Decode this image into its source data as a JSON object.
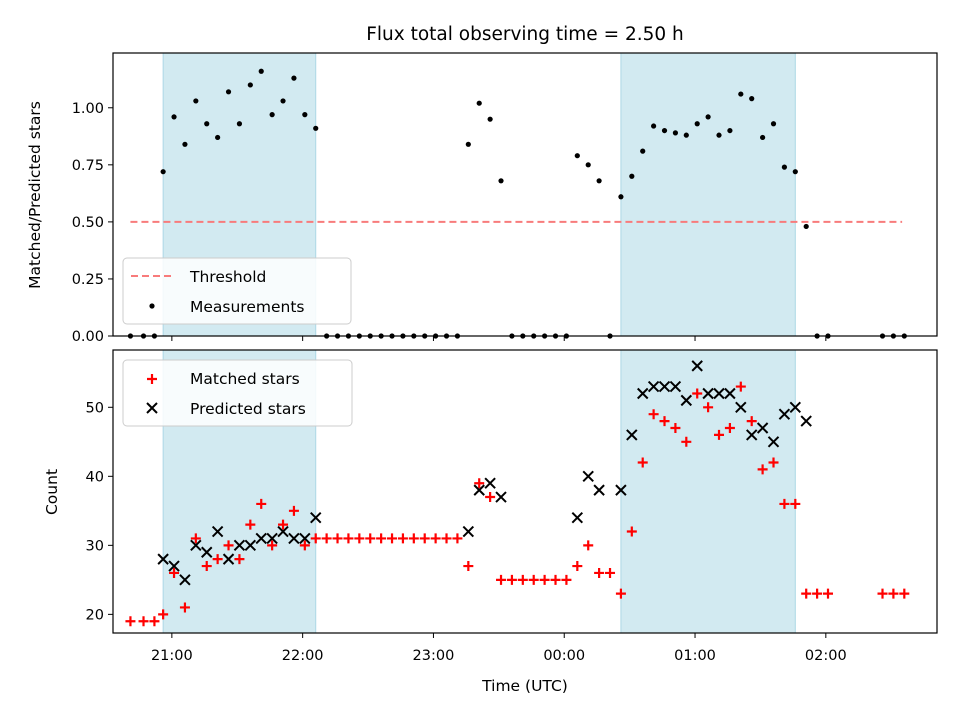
{
  "chart_data": [
    {
      "type": "scatter",
      "title": "Flux total observing time = 2.50 h",
      "xlabel": "",
      "ylabel": "Matched/Predicted stars",
      "ylim": [
        0,
        1.24
      ],
      "xlim": [
        "20:33",
        "02:51"
      ],
      "x_ticks": [
        "21:00",
        "22:00",
        "23:00",
        "00:00",
        "01:00",
        "02:00"
      ],
      "y_ticks": [
        "0.00",
        "0.25",
        "0.50",
        "0.75",
        "1.00"
      ],
      "y_tick_values": [
        0,
        0.25,
        0.5,
        0.75,
        1.0
      ],
      "grid": false,
      "legend": "lower-left",
      "shaded_intervals": [
        [
          "20:56",
          "22:06"
        ],
        [
          "00:26",
          "01:46"
        ]
      ],
      "series": [
        {
          "name": "Threshold",
          "kind": "dashed-line",
          "color": "#f87b7b",
          "points": [
            {
              "x": "20:41",
              "y": 0.5
            },
            {
              "x": "02:35",
              "y": 0.5
            }
          ]
        },
        {
          "name": "Measurements",
          "kind": "dots",
          "color": "#000000",
          "points": [
            {
              "x": "20:41",
              "y": 0
            },
            {
              "x": "20:47",
              "y": 0
            },
            {
              "x": "20:52",
              "y": 0
            },
            {
              "x": "20:56",
              "y": 0.72
            },
            {
              "x": "21:01",
              "y": 0.96
            },
            {
              "x": "21:06",
              "y": 0.84
            },
            {
              "x": "21:11",
              "y": 1.03
            },
            {
              "x": "21:16",
              "y": 0.93
            },
            {
              "x": "21:21",
              "y": 0.87
            },
            {
              "x": "21:26",
              "y": 1.07
            },
            {
              "x": "21:31",
              "y": 0.93
            },
            {
              "x": "21:36",
              "y": 1.1
            },
            {
              "x": "21:41",
              "y": 1.16
            },
            {
              "x": "21:46",
              "y": 0.97
            },
            {
              "x": "21:51",
              "y": 1.03
            },
            {
              "x": "21:56",
              "y": 1.13
            },
            {
              "x": "22:01",
              "y": 0.97
            },
            {
              "x": "22:06",
              "y": 0.91
            },
            {
              "x": "22:11",
              "y": 0
            },
            {
              "x": "22:16",
              "y": 0
            },
            {
              "x": "22:21",
              "y": 0
            },
            {
              "x": "22:26",
              "y": 0
            },
            {
              "x": "22:31",
              "y": 0
            },
            {
              "x": "22:36",
              "y": 0
            },
            {
              "x": "22:41",
              "y": 0
            },
            {
              "x": "22:46",
              "y": 0
            },
            {
              "x": "22:51",
              "y": 0
            },
            {
              "x": "22:56",
              "y": 0
            },
            {
              "x": "23:01",
              "y": 0
            },
            {
              "x": "23:06",
              "y": 0
            },
            {
              "x": "23:11",
              "y": 0
            },
            {
              "x": "23:16",
              "y": 0.84
            },
            {
              "x": "23:21",
              "y": 1.02
            },
            {
              "x": "23:26",
              "y": 0.95
            },
            {
              "x": "23:31",
              "y": 0.68
            },
            {
              "x": "23:36",
              "y": 0
            },
            {
              "x": "23:41",
              "y": 0
            },
            {
              "x": "23:46",
              "y": 0
            },
            {
              "x": "23:51",
              "y": 0
            },
            {
              "x": "23:56",
              "y": 0
            },
            {
              "x": "00:01",
              "y": 0
            },
            {
              "x": "00:06",
              "y": 0.79
            },
            {
              "x": "00:11",
              "y": 0.75
            },
            {
              "x": "00:16",
              "y": 0.68
            },
            {
              "x": "00:21",
              "y": 0
            },
            {
              "x": "00:26",
              "y": 0.61
            },
            {
              "x": "00:31",
              "y": 0.7
            },
            {
              "x": "00:36",
              "y": 0.81
            },
            {
              "x": "00:41",
              "y": 0.92
            },
            {
              "x": "00:46",
              "y": 0.9
            },
            {
              "x": "00:51",
              "y": 0.89
            },
            {
              "x": "00:56",
              "y": 0.88
            },
            {
              "x": "01:01",
              "y": 0.93
            },
            {
              "x": "01:06",
              "y": 0.96
            },
            {
              "x": "01:11",
              "y": 0.88
            },
            {
              "x": "01:16",
              "y": 0.9
            },
            {
              "x": "01:21",
              "y": 1.06
            },
            {
              "x": "01:26",
              "y": 1.04
            },
            {
              "x": "01:31",
              "y": 0.87
            },
            {
              "x": "01:36",
              "y": 0.93
            },
            {
              "x": "01:41",
              "y": 0.74
            },
            {
              "x": "01:46",
              "y": 0.72
            },
            {
              "x": "01:51",
              "y": 0.48
            },
            {
              "x": "01:56",
              "y": 0
            },
            {
              "x": "02:01",
              "y": 0
            },
            {
              "x": "02:26",
              "y": 0
            },
            {
              "x": "02:31",
              "y": 0
            },
            {
              "x": "02:36",
              "y": 0
            }
          ]
        }
      ]
    },
    {
      "type": "scatter",
      "title": "",
      "xlabel": "Time (UTC)",
      "ylabel": "Count",
      "ylim": [
        17.3,
        58.3
      ],
      "xlim": [
        "20:33",
        "02:51"
      ],
      "x_ticks": [
        "21:00",
        "22:00",
        "23:00",
        "00:00",
        "01:00",
        "02:00"
      ],
      "y_ticks": [
        "20",
        "30",
        "40",
        "50"
      ],
      "y_tick_values": [
        20,
        30,
        40,
        50
      ],
      "grid": false,
      "legend": "upper-left",
      "shaded_intervals": [
        [
          "20:56",
          "22:06"
        ],
        [
          "00:26",
          "01:46"
        ]
      ],
      "series": [
        {
          "name": "Matched stars",
          "kind": "plus",
          "color": "#ff0000",
          "points": [
            {
              "x": "20:41",
              "y": 19
            },
            {
              "x": "20:47",
              "y": 19
            },
            {
              "x": "20:52",
              "y": 19
            },
            {
              "x": "20:56",
              "y": 20
            },
            {
              "x": "21:01",
              "y": 26
            },
            {
              "x": "21:06",
              "y": 21
            },
            {
              "x": "21:11",
              "y": 31
            },
            {
              "x": "21:16",
              "y": 27
            },
            {
              "x": "21:21",
              "y": 28
            },
            {
              "x": "21:26",
              "y": 30
            },
            {
              "x": "21:31",
              "y": 28
            },
            {
              "x": "21:36",
              "y": 33
            },
            {
              "x": "21:41",
              "y": 36
            },
            {
              "x": "21:46",
              "y": 30
            },
            {
              "x": "21:51",
              "y": 33
            },
            {
              "x": "21:56",
              "y": 35
            },
            {
              "x": "22:01",
              "y": 30
            },
            {
              "x": "22:06",
              "y": 31
            },
            {
              "x": "22:11",
              "y": 31
            },
            {
              "x": "22:16",
              "y": 31
            },
            {
              "x": "22:21",
              "y": 31
            },
            {
              "x": "22:26",
              "y": 31
            },
            {
              "x": "22:31",
              "y": 31
            },
            {
              "x": "22:36",
              "y": 31
            },
            {
              "x": "22:41",
              "y": 31
            },
            {
              "x": "22:46",
              "y": 31
            },
            {
              "x": "22:51",
              "y": 31
            },
            {
              "x": "22:56",
              "y": 31
            },
            {
              "x": "23:01",
              "y": 31
            },
            {
              "x": "23:06",
              "y": 31
            },
            {
              "x": "23:11",
              "y": 31
            },
            {
              "x": "23:16",
              "y": 27
            },
            {
              "x": "23:21",
              "y": 39
            },
            {
              "x": "23:26",
              "y": 37
            },
            {
              "x": "23:31",
              "y": 25
            },
            {
              "x": "23:36",
              "y": 25
            },
            {
              "x": "23:41",
              "y": 25
            },
            {
              "x": "23:46",
              "y": 25
            },
            {
              "x": "23:51",
              "y": 25
            },
            {
              "x": "23:56",
              "y": 25
            },
            {
              "x": "00:01",
              "y": 25
            },
            {
              "x": "00:06",
              "y": 27
            },
            {
              "x": "00:11",
              "y": 30
            },
            {
              "x": "00:16",
              "y": 26
            },
            {
              "x": "00:21",
              "y": 26
            },
            {
              "x": "00:26",
              "y": 23
            },
            {
              "x": "00:31",
              "y": 32
            },
            {
              "x": "00:36",
              "y": 42
            },
            {
              "x": "00:41",
              "y": 49
            },
            {
              "x": "00:46",
              "y": 48
            },
            {
              "x": "00:51",
              "y": 47
            },
            {
              "x": "00:56",
              "y": 45
            },
            {
              "x": "01:01",
              "y": 52
            },
            {
              "x": "01:06",
              "y": 50
            },
            {
              "x": "01:11",
              "y": 46
            },
            {
              "x": "01:16",
              "y": 47
            },
            {
              "x": "01:21",
              "y": 53
            },
            {
              "x": "01:26",
              "y": 48
            },
            {
              "x": "01:31",
              "y": 41
            },
            {
              "x": "01:36",
              "y": 42
            },
            {
              "x": "01:41",
              "y": 36
            },
            {
              "x": "01:46",
              "y": 36
            },
            {
              "x": "01:51",
              "y": 23
            },
            {
              "x": "01:56",
              "y": 23
            },
            {
              "x": "02:01",
              "y": 23
            },
            {
              "x": "02:26",
              "y": 23
            },
            {
              "x": "02:31",
              "y": 23
            },
            {
              "x": "02:36",
              "y": 23
            }
          ]
        },
        {
          "name": "Predicted stars",
          "kind": "cross",
          "color": "#000000",
          "points": [
            {
              "x": "20:56",
              "y": 28
            },
            {
              "x": "21:01",
              "y": 27
            },
            {
              "x": "21:06",
              "y": 25
            },
            {
              "x": "21:11",
              "y": 30
            },
            {
              "x": "21:16",
              "y": 29
            },
            {
              "x": "21:21",
              "y": 32
            },
            {
              "x": "21:26",
              "y": 28
            },
            {
              "x": "21:31",
              "y": 30
            },
            {
              "x": "21:36",
              "y": 30
            },
            {
              "x": "21:41",
              "y": 31
            },
            {
              "x": "21:46",
              "y": 31
            },
            {
              "x": "21:51",
              "y": 32
            },
            {
              "x": "21:56",
              "y": 31
            },
            {
              "x": "22:01",
              "y": 31
            },
            {
              "x": "22:06",
              "y": 34
            },
            {
              "x": "23:16",
              "y": 32
            },
            {
              "x": "23:21",
              "y": 38
            },
            {
              "x": "23:26",
              "y": 39
            },
            {
              "x": "23:31",
              "y": 37
            },
            {
              "x": "00:06",
              "y": 34
            },
            {
              "x": "00:11",
              "y": 40
            },
            {
              "x": "00:16",
              "y": 38
            },
            {
              "x": "00:26",
              "y": 38
            },
            {
              "x": "00:31",
              "y": 46
            },
            {
              "x": "00:36",
              "y": 52
            },
            {
              "x": "00:41",
              "y": 53
            },
            {
              "x": "00:46",
              "y": 53
            },
            {
              "x": "00:51",
              "y": 53
            },
            {
              "x": "00:56",
              "y": 51
            },
            {
              "x": "01:01",
              "y": 56
            },
            {
              "x": "01:06",
              "y": 52
            },
            {
              "x": "01:11",
              "y": 52
            },
            {
              "x": "01:16",
              "y": 52
            },
            {
              "x": "01:21",
              "y": 50
            },
            {
              "x": "01:26",
              "y": 46
            },
            {
              "x": "01:31",
              "y": 47
            },
            {
              "x": "01:36",
              "y": 45
            },
            {
              "x": "01:41",
              "y": 49
            },
            {
              "x": "01:46",
              "y": 50
            },
            {
              "x": "01:51",
              "y": 48
            }
          ]
        }
      ]
    }
  ],
  "colors": {
    "shade": "#add8e6",
    "threshold": "#f87b7b",
    "matched": "#ff0000",
    "predicted": "#000000",
    "measurement": "#000000"
  }
}
